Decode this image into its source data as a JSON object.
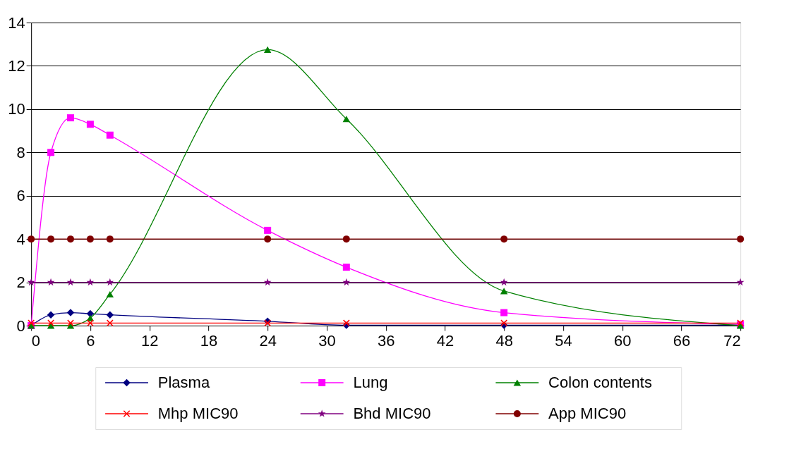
{
  "chart_data": {
    "type": "line",
    "x": [
      0,
      2,
      4,
      6,
      8,
      24,
      32,
      48,
      72
    ],
    "series": [
      {
        "name": "Plasma",
        "color": "#000080",
        "marker": "diamond",
        "values": [
          0,
          0.5,
          0.6,
          0.55,
          0.5,
          0.2,
          0.02,
          0.02,
          0.02
        ]
      },
      {
        "name": "Lung",
        "color": "#ff00ff",
        "marker": "square",
        "values": [
          0,
          8.0,
          9.6,
          9.3,
          8.8,
          4.4,
          2.7,
          0.6,
          0.05
        ]
      },
      {
        "name": "Colon contents",
        "color": "#008000",
        "marker": "triangle",
        "values": [
          0,
          0,
          0,
          0.35,
          1.45,
          12.75,
          9.55,
          1.6,
          0
        ]
      },
      {
        "name": "Mhp MIC90",
        "color": "#ff0000",
        "marker": "cross",
        "values": [
          0.12,
          0.12,
          0.12,
          0.12,
          0.12,
          0.12,
          0.12,
          0.12,
          0.12
        ]
      },
      {
        "name": "Bhd MIC90",
        "color": "#800080",
        "marker": "star",
        "values": [
          2,
          2,
          2,
          2,
          2,
          2,
          2,
          2,
          2
        ]
      },
      {
        "name": "App MIC90",
        "color": "#800000",
        "marker": "circle",
        "values": [
          4,
          4,
          4,
          4,
          4,
          4,
          4,
          4,
          4
        ]
      }
    ],
    "xlim": [
      0,
      72
    ],
    "xticks": [
      0,
      6,
      12,
      18,
      24,
      30,
      36,
      42,
      48,
      54,
      60,
      66,
      72
    ],
    "ylim": [
      0,
      14
    ],
    "yticks": [
      0,
      2,
      4,
      6,
      8,
      10,
      12,
      14
    ],
    "grid": "y",
    "legend": "bottom"
  }
}
